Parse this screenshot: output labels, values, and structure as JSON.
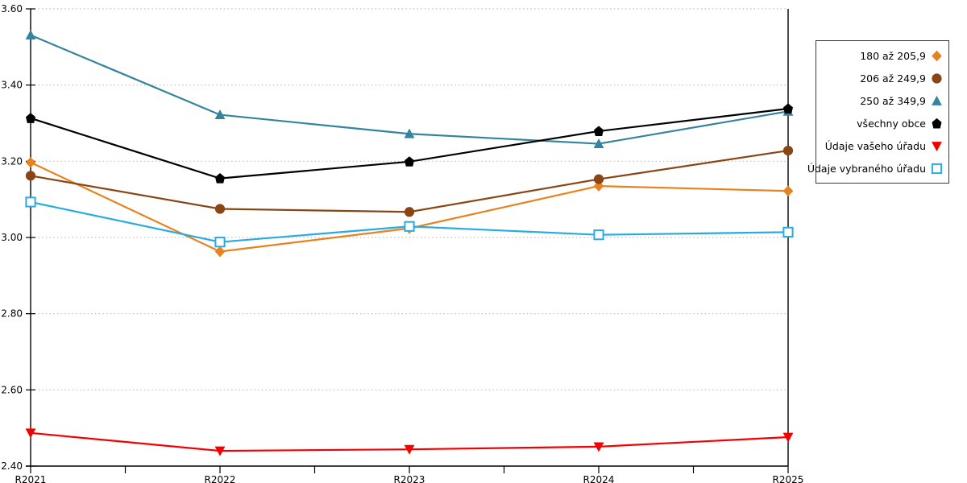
{
  "chart_data": {
    "type": "line",
    "title": "",
    "xlabel": "",
    "ylabel": "",
    "categories": [
      "R2021",
      "R2022",
      "R2023",
      "R2024",
      "R2025"
    ],
    "series": [
      {
        "name": "180 až 205,9",
        "marker": "diamond",
        "color": "#E8821E",
        "values": [
          3.197,
          2.963,
          3.024,
          3.135,
          3.122
        ]
      },
      {
        "name": "206 až 249,9",
        "marker": "circle",
        "color": "#8B4513",
        "values": [
          3.162,
          3.075,
          3.067,
          3.153,
          3.228
        ]
      },
      {
        "name": "250 až 349,9",
        "marker": "triangle-up",
        "color": "#35849E",
        "values": [
          3.531,
          3.322,
          3.272,
          3.246,
          3.331
        ]
      },
      {
        "name": "všechny obce",
        "marker": "pentagon",
        "color": "#000000",
        "values": [
          3.313,
          3.155,
          3.199,
          3.279,
          3.338
        ]
      },
      {
        "name": "Údaje vašeho úřadu",
        "marker": "triangle-down",
        "color": "#F40000",
        "values": [
          2.487,
          2.44,
          2.444,
          2.451,
          2.476
        ]
      },
      {
        "name": "Údaje vybraného úřadu",
        "marker": "square-open",
        "color": "#29ABE2",
        "values": [
          3.093,
          2.988,
          3.029,
          3.007,
          3.014
        ]
      }
    ],
    "ylim": [
      2.4,
      3.6
    ],
    "y_ticks": [
      3.6,
      3.4,
      3.2,
      3.0,
      2.8,
      2.6,
      2.4
    ],
    "y_tick_labels": [
      "3.60",
      "3.40",
      "3.20",
      "3.00",
      "2.80",
      "2.60",
      "2.40"
    ],
    "x_minor_ticks_between_categories": 1,
    "grid": "horizontal-dotted",
    "grid_color": "#bdbdbd",
    "axis_color": "#000000",
    "background_color": "#ffffff",
    "legend_position": "right",
    "legend_border_color": "#3c3c3c"
  }
}
